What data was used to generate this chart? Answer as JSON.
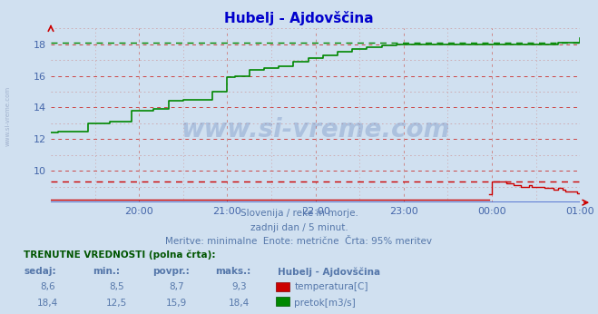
{
  "title": "Hubelj - Ajdovščina",
  "title_color": "#0000cc",
  "bg_color": "#d0e0f0",
  "plot_bg_color": "#d0e0f0",
  "grid_color_h": "#cc4444",
  "grid_color_v": "#cc8888",
  "tick_color": "#4466aa",
  "xmin": 0,
  "xmax": 360,
  "ymin": 8,
  "ymax": 19,
  "yticks": [
    10,
    12,
    14,
    16,
    18
  ],
  "xtick_labels": [
    "20:00",
    "21:00",
    "22:00",
    "23:00",
    "00:00",
    "01:00"
  ],
  "xtick_positions": [
    60,
    120,
    180,
    240,
    300,
    360
  ],
  "temp_color": "#cc0000",
  "flow_color": "#008800",
  "baseline_color": "#4466cc",
  "temp_ref_line": 9.3,
  "flow_ref_line": 18.1,
  "subtitle1": "Slovenija / reke in morje.",
  "subtitle2": "zadnji dan / 5 minut.",
  "subtitle3": "Meritve: minimalne  Enote: metrične  Črta: 95% meritev",
  "subtitle_color": "#5577aa",
  "table_header": "TRENUTNE VREDNOSTI (polna črta):",
  "table_col1": "sedaj:",
  "table_col2": "min.:",
  "table_col3": "povpr.:",
  "table_col4": "maks.:",
  "table_col5": "Hubelj - Ajdovščina",
  "table_row1": [
    "8,6",
    "8,5",
    "8,7",
    "9,3",
    "temperatura[C]"
  ],
  "table_row2": [
    "18,4",
    "12,5",
    "15,9",
    "18,4",
    "pretok[m3/s]"
  ],
  "table_color": "#5577aa",
  "table_header_color": "#005500",
  "watermark": "www.si-vreme.com",
  "temp_baseline_x": [
    0,
    298
  ],
  "temp_baseline_y": [
    8.2,
    8.2
  ],
  "temp_data_x": [
    298,
    300,
    305,
    310,
    315,
    320,
    325,
    327,
    330,
    333,
    336,
    339,
    342,
    345,
    348,
    350,
    353,
    356,
    358,
    360
  ],
  "temp_data_y": [
    8.5,
    9.3,
    9.3,
    9.2,
    9.1,
    9.0,
    9.1,
    9.0,
    9.0,
    9.0,
    8.9,
    8.9,
    8.8,
    8.9,
    8.8,
    8.7,
    8.7,
    8.7,
    8.6,
    8.6
  ],
  "flow_data_x": [
    0,
    5,
    15,
    25,
    40,
    55,
    60,
    70,
    80,
    90,
    100,
    110,
    120,
    125,
    135,
    145,
    155,
    165,
    175,
    185,
    195,
    205,
    215,
    225,
    235,
    245,
    255,
    265,
    275,
    285,
    295,
    305,
    315,
    325,
    335,
    345,
    355,
    360
  ],
  "flow_data_y": [
    12.4,
    12.5,
    12.5,
    13.0,
    13.1,
    13.8,
    13.8,
    13.9,
    14.4,
    14.5,
    14.5,
    15.0,
    15.9,
    16.0,
    16.4,
    16.5,
    16.6,
    16.9,
    17.1,
    17.3,
    17.5,
    17.7,
    17.8,
    17.9,
    18.0,
    18.0,
    18.0,
    18.0,
    18.0,
    18.0,
    18.0,
    18.0,
    18.0,
    18.0,
    18.0,
    18.1,
    18.1,
    18.4
  ]
}
